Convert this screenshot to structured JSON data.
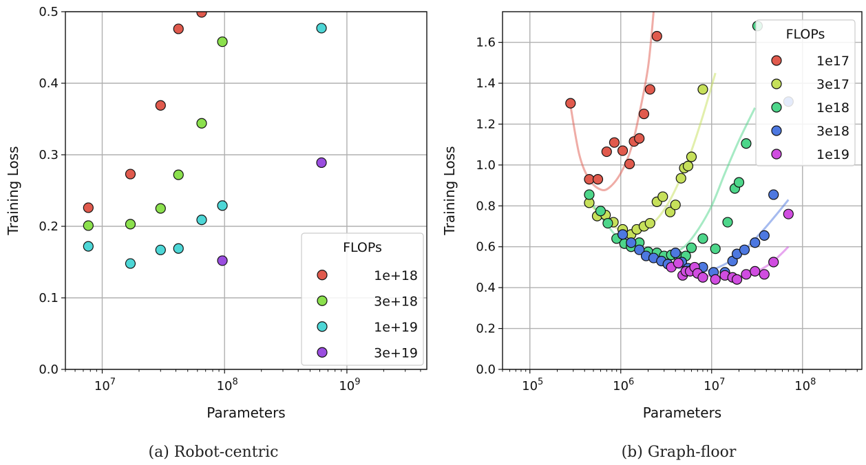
{
  "captions": [
    "(a) Robot-centric",
    "(b) Graph-floor"
  ],
  "chart_data": [
    {
      "type": "scatter",
      "xlabel": "Parameters",
      "ylabel": "Training Loss",
      "xscale": "log",
      "xlim": [
        5000000,
        4500000000
      ],
      "ylim": [
        0,
        0.5
      ],
      "xticks": [
        10000000,
        100000000,
        1000000000
      ],
      "xtick_labels": [
        [
          "10",
          "7"
        ],
        [
          "10",
          "8"
        ],
        [
          "10",
          "9"
        ]
      ],
      "yticks": [
        0,
        0.1,
        0.2,
        0.3,
        0.4,
        0.5
      ],
      "ytick_labels": [
        "0.0",
        "0.1",
        "0.2",
        "0.3",
        "0.4",
        "0.5"
      ],
      "grid": true,
      "legend": {
        "title": "FLOPs",
        "position": "lower-right"
      },
      "series": [
        {
          "name": "1e+18",
          "color": "#e05a4d",
          "points": [
            [
              7700000,
              0.226
            ],
            [
              17000000,
              0.273
            ],
            [
              30000000,
              0.369
            ],
            [
              42000000,
              0.476
            ],
            [
              65000000,
              0.499
            ]
          ]
        },
        {
          "name": "3e+18",
          "color": "#8be04d",
          "points": [
            [
              7700000,
              0.201
            ],
            [
              17000000,
              0.203
            ],
            [
              30000000,
              0.225
            ],
            [
              42000000,
              0.272
            ],
            [
              65000000,
              0.344
            ],
            [
              96000000,
              0.458
            ]
          ]
        },
        {
          "name": "1e+19",
          "color": "#4dd6d6",
          "points": [
            [
              7700000,
              0.172
            ],
            [
              17000000,
              0.148
            ],
            [
              30000000,
              0.167
            ],
            [
              42000000,
              0.169
            ],
            [
              65000000,
              0.209
            ],
            [
              96000000,
              0.229
            ],
            [
              620000000,
              0.477
            ]
          ]
        },
        {
          "name": "3e+19",
          "color": "#9a4ddf",
          "points": [
            [
              96000000,
              0.152
            ],
            [
              620000000,
              0.289
            ]
          ]
        }
      ]
    },
    {
      "type": "scatter",
      "xlabel": "Parameters",
      "ylabel": "Training Loss",
      "xscale": "log",
      "xlim": [
        50000,
        450000000
      ],
      "ylim": [
        0,
        1.75
      ],
      "xticks": [
        100000,
        1000000,
        10000000,
        100000000
      ],
      "xtick_labels": [
        [
          "10",
          "5"
        ],
        [
          "10",
          "6"
        ],
        [
          "10",
          "7"
        ],
        [
          "10",
          "8"
        ]
      ],
      "yticks": [
        0,
        0.2,
        0.4,
        0.6,
        0.8,
        1.0,
        1.2,
        1.4,
        1.6
      ],
      "ytick_labels": [
        "0.0",
        "0.2",
        "0.4",
        "0.6",
        "0.8",
        "1.0",
        "1.2",
        "1.4",
        "1.6"
      ],
      "grid": true,
      "legend": {
        "title": "FLOPs",
        "position": "upper-right"
      },
      "series": [
        {
          "name": "1e17",
          "color": "#e05a4d",
          "points": [
            [
              280000,
              1.302
            ],
            [
              450000,
              0.93
            ],
            [
              560000,
              0.93
            ],
            [
              700000,
              1.065
            ],
            [
              850000,
              1.11
            ],
            [
              1050000,
              1.07
            ],
            [
              1250000,
              1.005
            ],
            [
              1400000,
              1.115
            ],
            [
              1600000,
              1.13
            ],
            [
              1800000,
              1.25
            ],
            [
              2100000,
              1.37
            ],
            [
              2500000,
              1.63
            ]
          ],
          "fit": [
            [
              280000,
              1.29
            ],
            [
              350000,
              1.05
            ],
            [
              450000,
              0.93
            ],
            [
              600000,
              0.88
            ],
            [
              750000,
              0.89
            ],
            [
              1000000,
              0.96
            ],
            [
              1300000,
              1.08
            ],
            [
              1600000,
              1.25
            ],
            [
              2000000,
              1.48
            ],
            [
              2300000,
              1.75
            ]
          ]
        },
        {
          "name": "3e17",
          "color": "#c6e05a",
          "points": [
            [
              450000,
              0.815
            ],
            [
              550000,
              0.75
            ],
            [
              680000,
              0.755
            ],
            [
              830000,
              0.72
            ],
            [
              1050000,
              0.685
            ],
            [
              1300000,
              0.66
            ],
            [
              1500000,
              0.685
            ],
            [
              1800000,
              0.7
            ],
            [
              2100000,
              0.715
            ],
            [
              2500000,
              0.82
            ],
            [
              2900000,
              0.845
            ],
            [
              3500000,
              0.77
            ],
            [
              4000000,
              0.805
            ],
            [
              4600000,
              0.935
            ],
            [
              5000000,
              0.985
            ],
            [
              5500000,
              0.995
            ],
            [
              6000000,
              1.04
            ],
            [
              8000000,
              1.37
            ]
          ],
          "fit": [
            [
              450000,
              0.81
            ],
            [
              700000,
              0.73
            ],
            [
              1000000,
              0.68
            ],
            [
              1500000,
              0.67
            ],
            [
              2200000,
              0.71
            ],
            [
              3200000,
              0.8
            ],
            [
              4500000,
              0.93
            ],
            [
              6000000,
              1.07
            ],
            [
              8000000,
              1.24
            ],
            [
              11000000,
              1.45
            ]
          ]
        },
        {
          "name": "1e18",
          "color": "#4dd68a",
          "points": [
            [
              450000,
              0.855
            ],
            [
              600000,
              0.775
            ],
            [
              720000,
              0.715
            ],
            [
              900000,
              0.64
            ],
            [
              1100000,
              0.615
            ],
            [
              1300000,
              0.6
            ],
            [
              1600000,
              0.62
            ],
            [
              2000000,
              0.575
            ],
            [
              2500000,
              0.57
            ],
            [
              3000000,
              0.555
            ],
            [
              3600000,
              0.56
            ],
            [
              4300000,
              0.555
            ],
            [
              5200000,
              0.555
            ],
            [
              6000000,
              0.595
            ],
            [
              8000000,
              0.64
            ],
            [
              11000000,
              0.59
            ],
            [
              15000000,
              0.72
            ],
            [
              18000000,
              0.885
            ],
            [
              20000000,
              0.915
            ],
            [
              24000000,
              1.105
            ],
            [
              32000000,
              1.68
            ]
          ],
          "fit": [
            [
              450000,
              0.83
            ],
            [
              700000,
              0.71
            ],
            [
              1000000,
              0.63
            ],
            [
              1500000,
              0.585
            ],
            [
              2200000,
              0.565
            ],
            [
              3500000,
              0.565
            ],
            [
              5000000,
              0.6
            ],
            [
              7000000,
              0.68
            ],
            [
              10000000,
              0.8
            ],
            [
              14000000,
              0.96
            ],
            [
              20000000,
              1.12
            ],
            [
              30000000,
              1.28
            ]
          ]
        },
        {
          "name": "3e18",
          "color": "#4d78e0",
          "points": [
            [
              1050000,
              0.66
            ],
            [
              1300000,
              0.62
            ],
            [
              1600000,
              0.585
            ],
            [
              1900000,
              0.555
            ],
            [
              2300000,
              0.545
            ],
            [
              2800000,
              0.53
            ],
            [
              3300000,
              0.515
            ],
            [
              4000000,
              0.57
            ],
            [
              4700000,
              0.525
            ],
            [
              5500000,
              0.495
            ],
            [
              6200000,
              0.49
            ],
            [
              8000000,
              0.5
            ],
            [
              10500000,
              0.475
            ],
            [
              14000000,
              0.475
            ],
            [
              17000000,
              0.53
            ],
            [
              19000000,
              0.565
            ],
            [
              23000000,
              0.585
            ],
            [
              30000000,
              0.62
            ],
            [
              38000000,
              0.655
            ],
            [
              48000000,
              0.855
            ],
            [
              70000000,
              1.31
            ]
          ],
          "fit": [
            [
              1000000,
              0.66
            ],
            [
              1500000,
              0.6
            ],
            [
              2200000,
              0.55
            ],
            [
              3500000,
              0.51
            ],
            [
              5500000,
              0.485
            ],
            [
              8000000,
              0.48
            ],
            [
              12000000,
              0.5
            ],
            [
              20000000,
              0.56
            ],
            [
              35000000,
              0.67
            ],
            [
              50000000,
              0.75
            ],
            [
              70000000,
              0.83
            ]
          ]
        },
        {
          "name": "1e19",
          "color": "#d04de0",
          "points": [
            [
              3600000,
              0.5
            ],
            [
              4300000,
              0.52
            ],
            [
              4800000,
              0.46
            ],
            [
              5200000,
              0.48
            ],
            [
              5800000,
              0.48
            ],
            [
              6500000,
              0.5
            ],
            [
              7000000,
              0.47
            ],
            [
              8000000,
              0.45
            ],
            [
              11000000,
              0.44
            ],
            [
              14000000,
              0.46
            ],
            [
              17000000,
              0.45
            ],
            [
              19000000,
              0.44
            ],
            [
              24000000,
              0.465
            ],
            [
              30000000,
              0.48
            ],
            [
              38000000,
              0.465
            ],
            [
              48000000,
              0.525
            ],
            [
              70000000,
              0.76
            ]
          ],
          "fit": [
            [
              3500000,
              0.52
            ],
            [
              6000000,
              0.48
            ],
            [
              10000000,
              0.455
            ],
            [
              17000000,
              0.45
            ],
            [
              28000000,
              0.47
            ],
            [
              45000000,
              0.52
            ],
            [
              70000000,
              0.6
            ]
          ]
        }
      ]
    }
  ]
}
